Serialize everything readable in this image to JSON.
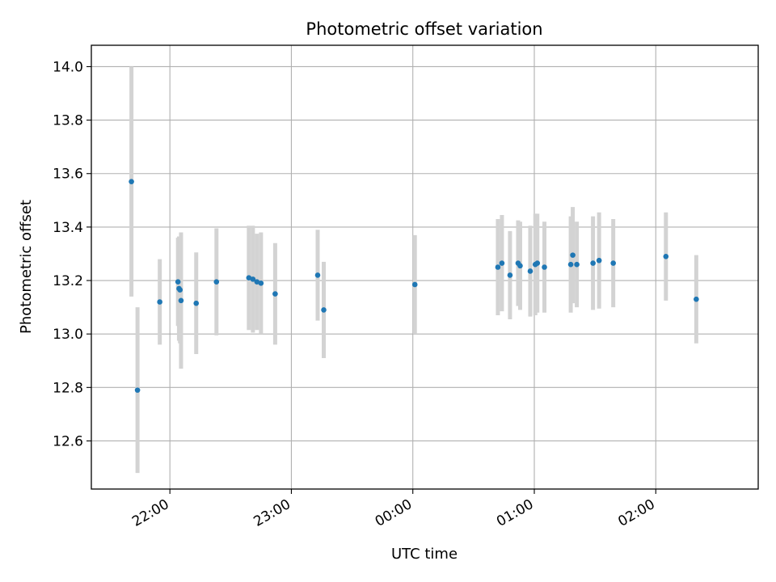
{
  "chart_data": {
    "type": "scatter",
    "title": "Photometric offset variation",
    "xlabel": "UTC time",
    "ylabel": "Photometric offset",
    "x_tick_labels": [
      "22:00",
      "23:00",
      "00:00",
      "01:00",
      "02:00"
    ],
    "y_tick_labels": [
      "12.6",
      "12.8",
      "13.0",
      "13.2",
      "13.4",
      "13.6",
      "13.8",
      "14.0"
    ],
    "ylim": [
      12.42,
      14.08
    ],
    "grid": true,
    "error_bars": "vertical light-gray bars",
    "point_color": "#1f77b4",
    "errorbar_color": "#d3d3d3",
    "series": [
      {
        "points": [
          {
            "x": "21:41",
            "y": 13.57,
            "err": 0.43
          },
          {
            "x": "21:44",
            "y": 12.79,
            "err": 0.31
          },
          {
            "x": "21:55",
            "y": 13.12,
            "err": 0.16
          },
          {
            "x": "22:13",
            "y": 13.115,
            "err": 0.19
          },
          {
            "x": "22:04",
            "y": 13.195,
            "err": 0.165
          },
          {
            "x": "22:04.5",
            "y": 13.17,
            "err": 0.195
          },
          {
            "x": "22:05",
            "y": 13.165,
            "err": 0.2
          },
          {
            "x": "22:05.5",
            "y": 13.125,
            "err": 0.255
          },
          {
            "x": "22:23",
            "y": 13.195,
            "err": 0.2
          },
          {
            "x": "22:39",
            "y": 13.21,
            "err": 0.195
          },
          {
            "x": "22:41",
            "y": 13.205,
            "err": 0.2
          },
          {
            "x": "22:43",
            "y": 13.195,
            "err": 0.18
          },
          {
            "x": "22:45",
            "y": 13.19,
            "err": 0.19
          },
          {
            "x": "22:52",
            "y": 13.15,
            "err": 0.19
          },
          {
            "x": "23:13",
            "y": 13.22,
            "err": 0.17
          },
          {
            "x": "23:16",
            "y": 13.09,
            "err": 0.18
          },
          {
            "x": "00:01",
            "y": 13.185,
            "err": 0.185
          },
          {
            "x": "00:42",
            "y": 13.25,
            "err": 0.18
          },
          {
            "x": "00:44",
            "y": 13.265,
            "err": 0.18
          },
          {
            "x": "00:48",
            "y": 13.22,
            "err": 0.165
          },
          {
            "x": "00:52",
            "y": 13.265,
            "err": 0.16
          },
          {
            "x": "00:53",
            "y": 13.255,
            "err": 0.165
          },
          {
            "x": "00:58",
            "y": 13.235,
            "err": 0.17
          },
          {
            "x": "01:00.5",
            "y": 13.26,
            "err": 0.19
          },
          {
            "x": "01:01.5",
            "y": 13.265,
            "err": 0.185
          },
          {
            "x": "01:05",
            "y": 13.25,
            "err": 0.17
          },
          {
            "x": "01:18",
            "y": 13.26,
            "err": 0.18
          },
          {
            "x": "01:19",
            "y": 13.295,
            "err": 0.18
          },
          {
            "x": "01:21",
            "y": 13.26,
            "err": 0.16
          },
          {
            "x": "01:29",
            "y": 13.265,
            "err": 0.175
          },
          {
            "x": "01:32",
            "y": 13.275,
            "err": 0.18
          },
          {
            "x": "01:39",
            "y": 13.265,
            "err": 0.165
          },
          {
            "x": "02:05",
            "y": 13.29,
            "err": 0.165
          },
          {
            "x": "02:20",
            "y": 13.13,
            "err": 0.165
          }
        ]
      }
    ]
  }
}
